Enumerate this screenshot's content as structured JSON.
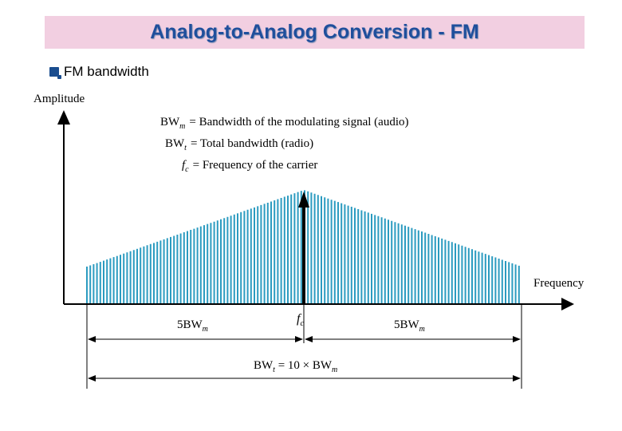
{
  "header": {
    "title": "Analog-to-Analog Conversion - FM"
  },
  "bullet": {
    "text": "FM bandwidth"
  },
  "diagram": {
    "y_axis_label": "Amplitude",
    "x_axis_label": "Frequency",
    "legend": [
      {
        "sym": "BW",
        "sub": "m",
        "text": "= Bandwidth of the modulating signal (audio)"
      },
      {
        "sym": "BW",
        "sub": "t",
        "text": "= Total bandwidth (radio)"
      },
      {
        "sym": "f",
        "sub": "c",
        "text": "= Frequency of the carrier"
      }
    ],
    "carrier_label": {
      "sym": "f",
      "sub": "c"
    },
    "left_span": {
      "num": "5BW",
      "sub": "m"
    },
    "right_span": {
      "num": "5BW",
      "sub": "m"
    },
    "total": {
      "lhs": "BW",
      "lhs_sub": "t",
      "eq": " = 10 × BW",
      "rhs_sub": "m"
    },
    "colors": {
      "spectrum_line": "#2b9bc0",
      "axis": "#000000",
      "title_bg": "#f2cfe1",
      "title_text": "#1f4f9c"
    }
  }
}
